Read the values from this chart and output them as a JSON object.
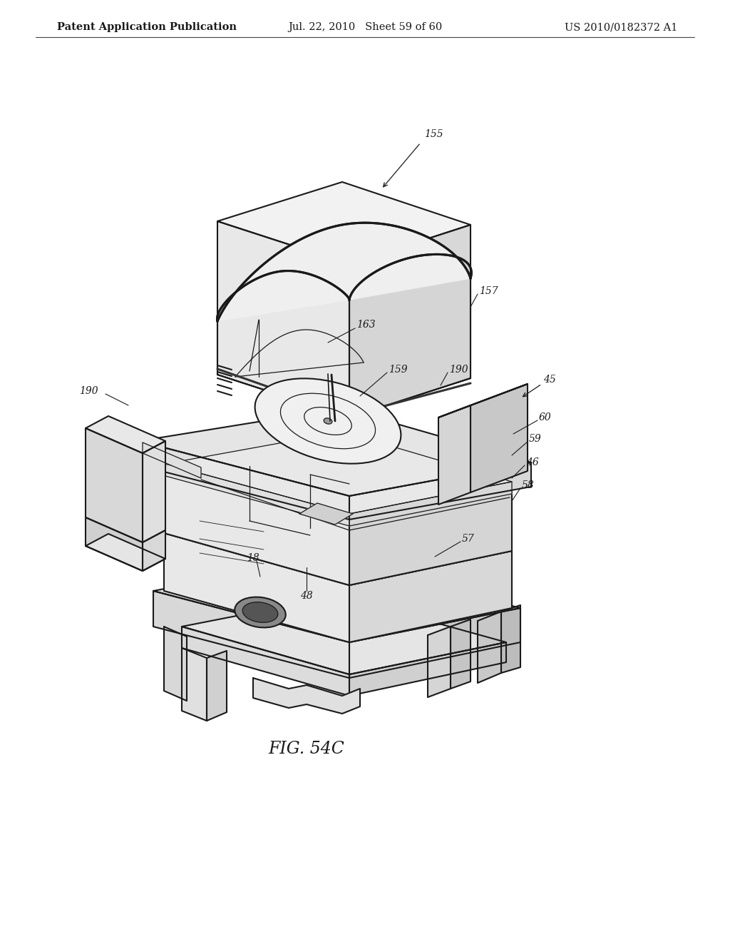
{
  "bg_color": "#ffffff",
  "line_color": "#1a1a1a",
  "header_left": "Patent Application Publication",
  "header_center": "Jul. 22, 2010   Sheet 59 of 60",
  "header_right": "US 2010/0182372 A1",
  "figure_label": "FIG. 54C",
  "header_fontsize": 10.5,
  "label_fontsize": 10,
  "fig_label_fontsize": 17,
  "fig_width": 10.24,
  "fig_height": 13.2,
  "dpi": 100
}
